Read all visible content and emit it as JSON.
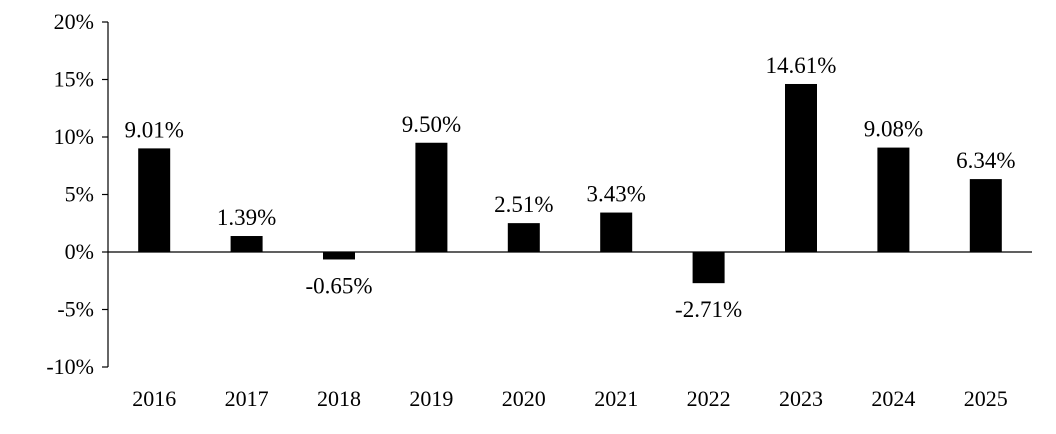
{
  "chart_data": {
    "type": "bar",
    "title": "",
    "xlabel": "",
    "ylabel": "",
    "categories": [
      "2016",
      "2017",
      "2018",
      "2019",
      "2020",
      "2021",
      "2022",
      "2023",
      "2024",
      "2025"
    ],
    "values": [
      9.01,
      1.39,
      -0.65,
      9.5,
      2.51,
      3.43,
      -2.71,
      14.61,
      9.08,
      6.34
    ],
    "value_labels": [
      "9.01%",
      "1.39%",
      "-0.65%",
      "9.50%",
      "2.51%",
      "3.43%",
      "-2.71%",
      "14.61%",
      "9.08%",
      "6.34%"
    ],
    "ylim": [
      -10,
      20
    ],
    "yticks": [
      20,
      15,
      10,
      5,
      0,
      -5,
      -10
    ],
    "ytick_labels": [
      "20%",
      "15%",
      "10%",
      "5%",
      "0%",
      "-5%",
      "-10%"
    ],
    "grid": false,
    "legend": "none",
    "bar_color": "#000000"
  }
}
